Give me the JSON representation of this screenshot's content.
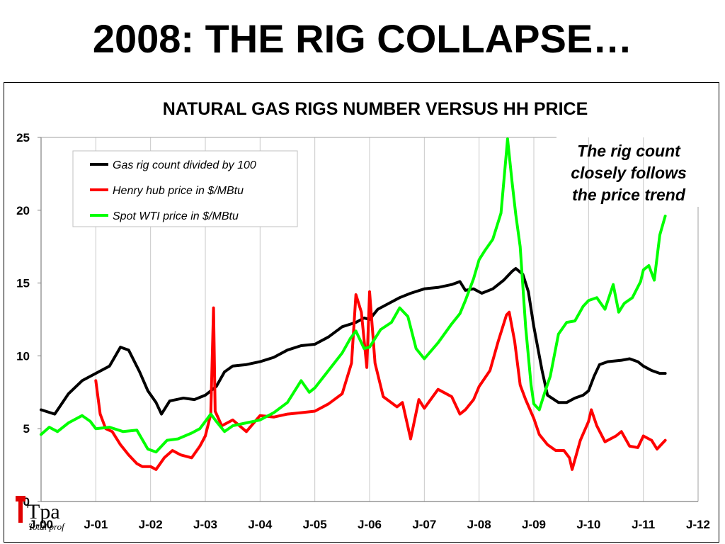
{
  "slide": {
    "title": "2008: THE RIG COLLAPSE…"
  },
  "annotation": {
    "lines": [
      "The rig count",
      "closely follows",
      "the price trend"
    ]
  },
  "logo": {
    "mark": "Tpa",
    "text": "Total prof"
  },
  "colors": {
    "rigs": "#000000",
    "hh": "#ff0000",
    "wti": "#00ff00",
    "grid": "#c8c8c8"
  },
  "chart_data": {
    "type": "line",
    "title": "NATURAL GAS RIGS NUMBER VERSUS HH PRICE",
    "xlabel": "",
    "ylabel": "",
    "ylim": [
      0,
      25
    ],
    "xlim": [
      2000.0,
      2012.0
    ],
    "yticks": [
      0,
      5,
      10,
      15,
      20,
      25
    ],
    "xticks": [
      {
        "x": 2000,
        "label": "J-00"
      },
      {
        "x": 2001,
        "label": "J-01"
      },
      {
        "x": 2002,
        "label": "J-02"
      },
      {
        "x": 2003,
        "label": "J-03"
      },
      {
        "x": 2004,
        "label": "J-04"
      },
      {
        "x": 2005,
        "label": "J-05"
      },
      {
        "x": 2006,
        "label": "J-06"
      },
      {
        "x": 2007,
        "label": "J-07"
      },
      {
        "x": 2008,
        "label": "J-08"
      },
      {
        "x": 2009,
        "label": "J-09"
      },
      {
        "x": 2010,
        "label": "J-10"
      },
      {
        "x": 2011,
        "label": "J-11"
      },
      {
        "x": 2012,
        "label": "J-12"
      }
    ],
    "grid": "vertical",
    "legend": "top-left",
    "series": [
      {
        "name": "Gas rig count divided by 100",
        "color": "#000000",
        "points": [
          [
            2000.0,
            6.3
          ],
          [
            2000.25,
            6.0
          ],
          [
            2000.5,
            7.4
          ],
          [
            2000.75,
            8.3
          ],
          [
            2001.0,
            8.8
          ],
          [
            2001.25,
            9.3
          ],
          [
            2001.45,
            10.6
          ],
          [
            2001.6,
            10.4
          ],
          [
            2001.8,
            8.9
          ],
          [
            2001.95,
            7.6
          ],
          [
            2002.1,
            6.8
          ],
          [
            2002.2,
            6.0
          ],
          [
            2002.35,
            6.9
          ],
          [
            2002.6,
            7.1
          ],
          [
            2002.8,
            7.0
          ],
          [
            2003.0,
            7.3
          ],
          [
            2003.2,
            7.9
          ],
          [
            2003.35,
            8.9
          ],
          [
            2003.5,
            9.3
          ],
          [
            2003.75,
            9.4
          ],
          [
            2004.0,
            9.6
          ],
          [
            2004.25,
            9.9
          ],
          [
            2004.5,
            10.4
          ],
          [
            2004.75,
            10.7
          ],
          [
            2005.0,
            10.8
          ],
          [
            2005.25,
            11.3
          ],
          [
            2005.5,
            12.0
          ],
          [
            2005.75,
            12.3
          ],
          [
            2005.9,
            12.6
          ],
          [
            2006.0,
            12.5
          ],
          [
            2006.15,
            13.2
          ],
          [
            2006.35,
            13.6
          ],
          [
            2006.55,
            14.0
          ],
          [
            2006.75,
            14.3
          ],
          [
            2007.0,
            14.6
          ],
          [
            2007.25,
            14.7
          ],
          [
            2007.5,
            14.9
          ],
          [
            2007.65,
            15.1
          ],
          [
            2007.75,
            14.5
          ],
          [
            2007.9,
            14.6
          ],
          [
            2008.05,
            14.3
          ],
          [
            2008.25,
            14.6
          ],
          [
            2008.45,
            15.2
          ],
          [
            2008.6,
            15.8
          ],
          [
            2008.67,
            16.0
          ],
          [
            2008.8,
            15.6
          ],
          [
            2008.9,
            14.4
          ],
          [
            2009.0,
            12.0
          ],
          [
            2009.15,
            9.0
          ],
          [
            2009.25,
            7.3
          ],
          [
            2009.45,
            6.8
          ],
          [
            2009.6,
            6.8
          ],
          [
            2009.75,
            7.1
          ],
          [
            2009.9,
            7.3
          ],
          [
            2010.0,
            7.6
          ],
          [
            2010.1,
            8.6
          ],
          [
            2010.2,
            9.4
          ],
          [
            2010.35,
            9.6
          ],
          [
            2010.6,
            9.7
          ],
          [
            2010.75,
            9.8
          ],
          [
            2010.9,
            9.6
          ],
          [
            2011.0,
            9.3
          ],
          [
            2011.15,
            9.0
          ],
          [
            2011.3,
            8.8
          ],
          [
            2011.4,
            8.8
          ]
        ]
      },
      {
        "name": "Henry hub price in $/MBtu",
        "color": "#ff0000",
        "points": [
          [
            2001.0,
            8.3
          ],
          [
            2001.08,
            6.0
          ],
          [
            2001.18,
            5.0
          ],
          [
            2001.3,
            4.8
          ],
          [
            2001.45,
            3.9
          ],
          [
            2001.6,
            3.2
          ],
          [
            2001.75,
            2.6
          ],
          [
            2001.85,
            2.4
          ],
          [
            2002.0,
            2.4
          ],
          [
            2002.1,
            2.2
          ],
          [
            2002.25,
            3.0
          ],
          [
            2002.4,
            3.5
          ],
          [
            2002.55,
            3.2
          ],
          [
            2002.75,
            3.0
          ],
          [
            2002.9,
            3.8
          ],
          [
            2003.0,
            4.5
          ],
          [
            2003.1,
            6.0
          ],
          [
            2003.15,
            13.3
          ],
          [
            2003.18,
            6.2
          ],
          [
            2003.3,
            5.2
          ],
          [
            2003.5,
            5.6
          ],
          [
            2003.75,
            4.8
          ],
          [
            2004.0,
            5.9
          ],
          [
            2004.25,
            5.8
          ],
          [
            2004.5,
            6.0
          ],
          [
            2004.75,
            6.1
          ],
          [
            2005.0,
            6.2
          ],
          [
            2005.25,
            6.7
          ],
          [
            2005.5,
            7.4
          ],
          [
            2005.67,
            9.5
          ],
          [
            2005.75,
            14.2
          ],
          [
            2005.85,
            13.0
          ],
          [
            2005.95,
            9.2
          ],
          [
            2006.0,
            14.4
          ],
          [
            2006.1,
            9.5
          ],
          [
            2006.25,
            7.2
          ],
          [
            2006.5,
            6.5
          ],
          [
            2006.6,
            6.8
          ],
          [
            2006.75,
            4.3
          ],
          [
            2006.9,
            7.0
          ],
          [
            2007.0,
            6.4
          ],
          [
            2007.25,
            7.7
          ],
          [
            2007.5,
            7.2
          ],
          [
            2007.65,
            6.0
          ],
          [
            2007.75,
            6.3
          ],
          [
            2007.9,
            7.0
          ],
          [
            2008.0,
            7.9
          ],
          [
            2008.2,
            9.0
          ],
          [
            2008.35,
            11.0
          ],
          [
            2008.5,
            12.8
          ],
          [
            2008.55,
            13.0
          ],
          [
            2008.65,
            11.0
          ],
          [
            2008.75,
            8.0
          ],
          [
            2008.85,
            7.0
          ],
          [
            2009.0,
            5.7
          ],
          [
            2009.1,
            4.6
          ],
          [
            2009.25,
            3.9
          ],
          [
            2009.4,
            3.5
          ],
          [
            2009.55,
            3.5
          ],
          [
            2009.65,
            3.0
          ],
          [
            2009.7,
            2.2
          ],
          [
            2009.85,
            4.2
          ],
          [
            2010.0,
            5.5
          ],
          [
            2010.05,
            6.3
          ],
          [
            2010.15,
            5.2
          ],
          [
            2010.3,
            4.1
          ],
          [
            2010.5,
            4.5
          ],
          [
            2010.6,
            4.8
          ],
          [
            2010.75,
            3.8
          ],
          [
            2010.9,
            3.7
          ],
          [
            2011.0,
            4.5
          ],
          [
            2011.15,
            4.2
          ],
          [
            2011.25,
            3.6
          ],
          [
            2011.4,
            4.2
          ]
        ]
      },
      {
        "name": "Spot WTI price in $/MBtu",
        "color": "#00ff00",
        "points": [
          [
            2000.0,
            4.6
          ],
          [
            2000.15,
            5.1
          ],
          [
            2000.3,
            4.8
          ],
          [
            2000.5,
            5.4
          ],
          [
            2000.75,
            5.9
          ],
          [
            2000.9,
            5.5
          ],
          [
            2001.0,
            5.0
          ],
          [
            2001.25,
            5.1
          ],
          [
            2001.5,
            4.8
          ],
          [
            2001.75,
            4.9
          ],
          [
            2001.95,
            3.6
          ],
          [
            2002.1,
            3.4
          ],
          [
            2002.3,
            4.2
          ],
          [
            2002.5,
            4.3
          ],
          [
            2002.75,
            4.7
          ],
          [
            2002.9,
            5.0
          ],
          [
            2003.1,
            6.0
          ],
          [
            2003.2,
            5.5
          ],
          [
            2003.35,
            4.8
          ],
          [
            2003.5,
            5.2
          ],
          [
            2003.75,
            5.4
          ],
          [
            2004.0,
            5.6
          ],
          [
            2004.25,
            6.1
          ],
          [
            2004.5,
            6.8
          ],
          [
            2004.75,
            8.3
          ],
          [
            2004.9,
            7.5
          ],
          [
            2005.0,
            7.8
          ],
          [
            2005.25,
            9.0
          ],
          [
            2005.5,
            10.2
          ],
          [
            2005.65,
            11.2
          ],
          [
            2005.75,
            11.7
          ],
          [
            2005.9,
            10.5
          ],
          [
            2006.0,
            10.6
          ],
          [
            2006.2,
            11.8
          ],
          [
            2006.4,
            12.3
          ],
          [
            2006.55,
            13.3
          ],
          [
            2006.7,
            12.7
          ],
          [
            2006.85,
            10.5
          ],
          [
            2007.0,
            9.8
          ],
          [
            2007.25,
            10.9
          ],
          [
            2007.5,
            12.2
          ],
          [
            2007.65,
            12.9
          ],
          [
            2007.75,
            13.8
          ],
          [
            2007.9,
            15.3
          ],
          [
            2008.0,
            16.6
          ],
          [
            2008.1,
            17.2
          ],
          [
            2008.25,
            18.0
          ],
          [
            2008.4,
            19.8
          ],
          [
            2008.5,
            24.0
          ],
          [
            2008.52,
            24.9
          ],
          [
            2008.6,
            22.0
          ],
          [
            2008.67,
            19.7
          ],
          [
            2008.75,
            17.5
          ],
          [
            2008.85,
            12.0
          ],
          [
            2008.95,
            8.0
          ],
          [
            2009.0,
            6.7
          ],
          [
            2009.1,
            6.3
          ],
          [
            2009.2,
            7.5
          ],
          [
            2009.3,
            8.6
          ],
          [
            2009.45,
            11.5
          ],
          [
            2009.6,
            12.3
          ],
          [
            2009.75,
            12.4
          ],
          [
            2009.9,
            13.4
          ],
          [
            2010.0,
            13.8
          ],
          [
            2010.15,
            14.0
          ],
          [
            2010.3,
            13.2
          ],
          [
            2010.45,
            14.9
          ],
          [
            2010.55,
            13.0
          ],
          [
            2010.65,
            13.6
          ],
          [
            2010.8,
            14.0
          ],
          [
            2010.95,
            15.1
          ],
          [
            2011.0,
            15.9
          ],
          [
            2011.1,
            16.2
          ],
          [
            2011.2,
            15.2
          ],
          [
            2011.3,
            18.3
          ],
          [
            2011.4,
            19.6
          ]
        ]
      }
    ]
  }
}
